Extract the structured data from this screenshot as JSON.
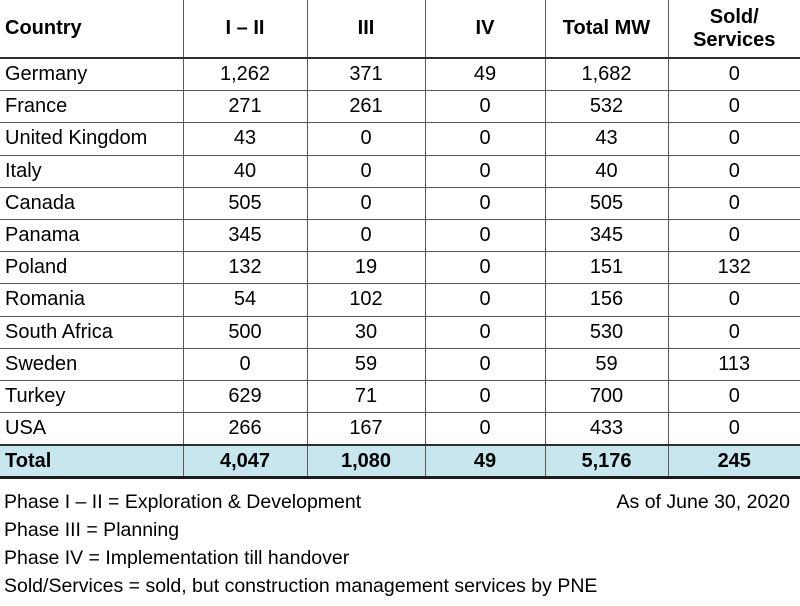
{
  "chart_data": {
    "type": "table",
    "columns": [
      "Country",
      "I – II",
      "III",
      "IV",
      "Total MW",
      "Sold/\nServices"
    ],
    "rows": [
      [
        "Germany",
        "1,262",
        "371",
        "49",
        "1,682",
        "0"
      ],
      [
        "France",
        "271",
        "261",
        "0",
        "532",
        "0"
      ],
      [
        "United Kingdom",
        "43",
        "0",
        "0",
        "43",
        "0"
      ],
      [
        "Italy",
        "40",
        "0",
        "0",
        "40",
        "0"
      ],
      [
        "Canada",
        "505",
        "0",
        "0",
        "505",
        "0"
      ],
      [
        "Panama",
        "345",
        "0",
        "0",
        "345",
        "0"
      ],
      [
        "Poland",
        "132",
        "19",
        "0",
        "151",
        "132"
      ],
      [
        "Romania",
        "54",
        "102",
        "0",
        "156",
        "0"
      ],
      [
        "South Africa",
        "500",
        "30",
        "0",
        "530",
        "0"
      ],
      [
        "Sweden",
        "0",
        "59",
        "0",
        "59",
        "113"
      ],
      [
        "Turkey",
        "629",
        "71",
        "0",
        "700",
        "0"
      ],
      [
        "USA",
        "266",
        "167",
        "0",
        "433",
        "0"
      ]
    ],
    "total_row": [
      "Total",
      "4,047",
      "1,080",
      "49",
      "5,176",
      "245"
    ]
  },
  "footnotes": {
    "lines": [
      "Phase I – II = Exploration & Development",
      "Phase III = Planning",
      "Phase IV = Implementation till handover",
      "Sold/Services = sold, but construction management services by PNE"
    ],
    "as_of": "As of June 30, 2020"
  },
  "colors": {
    "total_row_bg": "#c8e6ee",
    "grid_line": "#595959",
    "strong_line": "#2e2e2e"
  }
}
